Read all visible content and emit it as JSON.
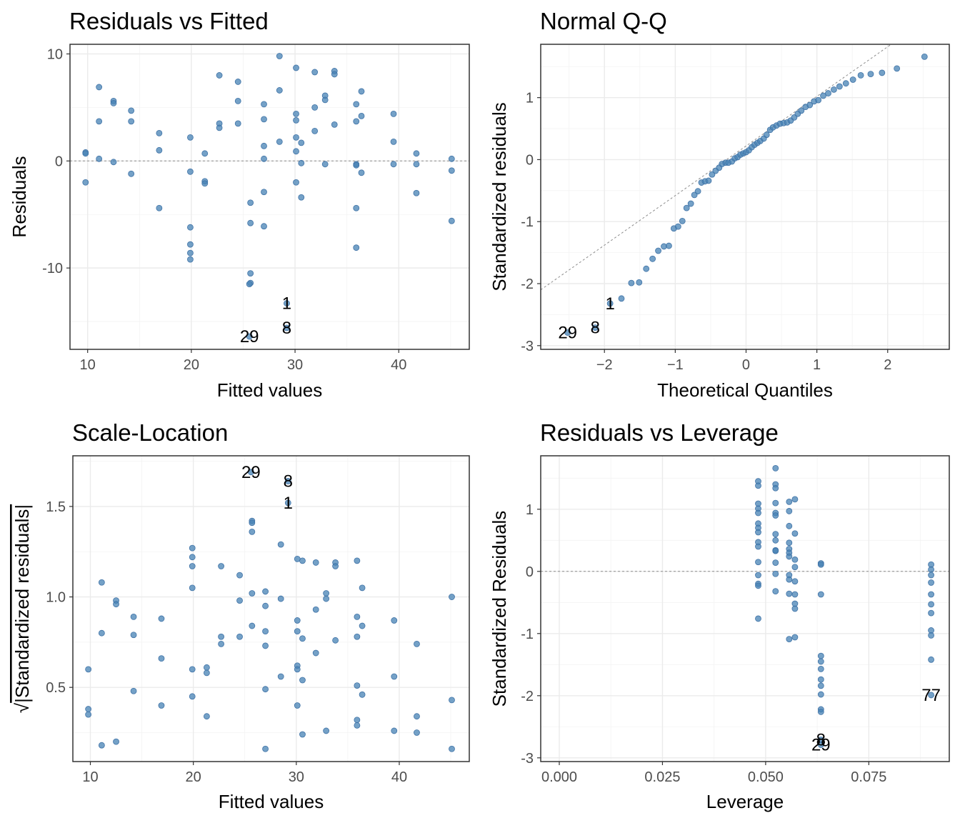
{
  "point_color": "#4682b4",
  "chart_data": [
    {
      "id": "rvf",
      "type": "scatter",
      "title": "Residuals vs Fitted",
      "xlabel": "Fitted values",
      "ylabel": "Residuals",
      "xlim": [
        8.3,
        46.8
      ],
      "ylim": [
        -17.6,
        10.9
      ],
      "xticks": [
        10,
        20,
        30,
        40
      ],
      "xtick_labels": [
        "10",
        "20",
        "30",
        "40"
      ],
      "yticks": [
        -10,
        0,
        10
      ],
      "ytick_labels": [
        "-10",
        "0",
        "10"
      ],
      "hline": 0,
      "grid": true,
      "points": [
        [
          9.8,
          0.8
        ],
        [
          9.8,
          0.7
        ],
        [
          9.8,
          -2.0
        ],
        [
          11.1,
          6.9
        ],
        [
          11.1,
          3.7
        ],
        [
          11.1,
          0.2
        ],
        [
          12.5,
          5.6
        ],
        [
          12.5,
          5.4
        ],
        [
          12.5,
          -0.1
        ],
        [
          14.2,
          4.7
        ],
        [
          14.2,
          3.7
        ],
        [
          14.2,
          -1.2
        ],
        [
          16.9,
          2.6
        ],
        [
          16.9,
          1.0
        ],
        [
          16.9,
          -4.4
        ],
        [
          19.9,
          2.2
        ],
        [
          19.9,
          -1.0
        ],
        [
          19.9,
          -6.2
        ],
        [
          19.9,
          -7.8
        ],
        [
          19.9,
          -8.6
        ],
        [
          19.9,
          -9.2
        ],
        [
          21.3,
          0.7
        ],
        [
          21.3,
          -1.9
        ],
        [
          21.3,
          -2.1
        ],
        [
          22.7,
          8.0
        ],
        [
          22.7,
          3.5
        ],
        [
          22.7,
          3.1
        ],
        [
          24.5,
          7.4
        ],
        [
          24.5,
          5.6
        ],
        [
          24.5,
          3.5
        ],
        [
          25.7,
          -3.9
        ],
        [
          25.7,
          -5.8
        ],
        [
          25.7,
          -10.5
        ],
        [
          25.7,
          -11.4
        ],
        [
          25.6,
          -11.5
        ],
        [
          27.0,
          5.3
        ],
        [
          27.0,
          3.9
        ],
        [
          27.0,
          1.4
        ],
        [
          27.0,
          0.2
        ],
        [
          27.0,
          -2.9
        ],
        [
          27.0,
          -6.1
        ],
        [
          28.5,
          9.8
        ],
        [
          28.5,
          6.6
        ],
        [
          28.5,
          1.8
        ],
        [
          30.1,
          8.7
        ],
        [
          30.1,
          4.4
        ],
        [
          30.1,
          3.8
        ],
        [
          30.1,
          2.2
        ],
        [
          30.1,
          0.9
        ],
        [
          30.1,
          -2.0
        ],
        [
          30.6,
          1.7
        ],
        [
          30.6,
          -0.2
        ],
        [
          30.6,
          -3.4
        ],
        [
          31.9,
          8.3
        ],
        [
          31.9,
          5.0
        ],
        [
          31.9,
          2.8
        ],
        [
          32.9,
          6.1
        ],
        [
          32.9,
          5.7
        ],
        [
          32.9,
          -0.3
        ],
        [
          33.8,
          8.4
        ],
        [
          33.8,
          8.1
        ],
        [
          33.8,
          3.4
        ],
        [
          35.9,
          5.3
        ],
        [
          35.9,
          3.7
        ],
        [
          35.9,
          -0.3
        ],
        [
          35.9,
          -0.4
        ],
        [
          35.9,
          -4.4
        ],
        [
          35.9,
          -8.1
        ],
        [
          36.4,
          6.5
        ],
        [
          36.4,
          4.2
        ],
        [
          36.4,
          -1.1
        ],
        [
          39.5,
          4.4
        ],
        [
          39.5,
          1.8
        ],
        [
          39.5,
          -0.3
        ],
        [
          41.7,
          0.7
        ],
        [
          41.7,
          -0.3
        ],
        [
          41.7,
          -3.0
        ],
        [
          45.1,
          0.2
        ],
        [
          45.1,
          -0.9
        ],
        [
          45.1,
          -5.6
        ],
        [
          29.2,
          -13.3
        ],
        [
          29.2,
          -15.6
        ],
        [
          25.6,
          -16.4
        ]
      ],
      "labels": [
        {
          "text": "1",
          "x": 29.2,
          "y": -13.3
        },
        {
          "text": "8",
          "x": 29.2,
          "y": -15.6
        },
        {
          "text": "29",
          "x": 25.6,
          "y": -16.4
        }
      ]
    },
    {
      "id": "qq",
      "type": "scatter",
      "title": "Normal Q-Q",
      "xlabel": "Theoretical Quantiles",
      "ylabel": "Standardized residuals",
      "xlim": [
        -2.9,
        2.87
      ],
      "ylim": [
        -3.06,
        1.86
      ],
      "xticks": [
        -2,
        -1,
        0,
        1,
        2
      ],
      "xtick_labels": [
        "−2",
        "−1",
        "0",
        "1",
        "2"
      ],
      "yticks": [
        -3,
        -2,
        -1,
        0,
        1
      ],
      "ytick_labels": [
        "-3",
        "-2",
        "-1",
        "0",
        "1"
      ],
      "refline": {
        "slope": 0.8,
        "intercept": 0.22
      },
      "grid": true,
      "points": [
        [
          -2.52,
          -2.79
        ],
        [
          -2.13,
          -2.71
        ],
        [
          -1.92,
          -2.32
        ],
        [
          -1.76,
          -2.24
        ],
        [
          -1.62,
          -1.99
        ],
        [
          -1.51,
          -1.98
        ],
        [
          -1.41,
          -1.76
        ],
        [
          -1.32,
          -1.6
        ],
        [
          -1.24,
          -1.47
        ],
        [
          -1.16,
          -1.4
        ],
        [
          -1.09,
          -1.39
        ],
        [
          -1.02,
          -1.11
        ],
        [
          -0.96,
          -1.08
        ],
        [
          -0.9,
          -0.99
        ],
        [
          -0.84,
          -0.78
        ],
        [
          -0.78,
          -0.71
        ],
        [
          -0.73,
          -0.57
        ],
        [
          -0.68,
          -0.51
        ],
        [
          -0.63,
          -0.37
        ],
        [
          -0.58,
          -0.35
        ],
        [
          -0.53,
          -0.34
        ],
        [
          -0.48,
          -0.24
        ],
        [
          -0.43,
          -0.18
        ],
        [
          -0.38,
          -0.13
        ],
        [
          -0.34,
          -0.07
        ],
        [
          -0.29,
          -0.05
        ],
        [
          -0.25,
          -0.05
        ],
        [
          -0.2,
          -0.03
        ],
        [
          -0.16,
          0.02
        ],
        [
          -0.12,
          0.04
        ],
        [
          -0.08,
          0.08
        ],
        [
          -0.04,
          0.1
        ],
        [
          0.0,
          0.12
        ],
        [
          0.04,
          0.15
        ],
        [
          0.08,
          0.2
        ],
        [
          0.12,
          0.24
        ],
        [
          0.16,
          0.27
        ],
        [
          0.2,
          0.3
        ],
        [
          0.25,
          0.34
        ],
        [
          0.29,
          0.4
        ],
        [
          0.34,
          0.48
        ],
        [
          0.38,
          0.52
        ],
        [
          0.43,
          0.55
        ],
        [
          0.48,
          0.58
        ],
        [
          0.53,
          0.59
        ],
        [
          0.58,
          0.6
        ],
        [
          0.63,
          0.63
        ],
        [
          0.68,
          0.68
        ],
        [
          0.73,
          0.74
        ],
        [
          0.78,
          0.79
        ],
        [
          0.84,
          0.85
        ],
        [
          0.9,
          0.88
        ],
        [
          0.96,
          0.94
        ],
        [
          1.02,
          0.96
        ],
        [
          1.09,
          1.03
        ],
        [
          1.16,
          1.07
        ],
        [
          1.24,
          1.13
        ],
        [
          1.32,
          1.18
        ],
        [
          1.41,
          1.23
        ],
        [
          1.51,
          1.29
        ],
        [
          1.62,
          1.36
        ],
        [
          1.76,
          1.38
        ],
        [
          1.92,
          1.4
        ],
        [
          2.13,
          1.47
        ],
        [
          2.52,
          1.66
        ]
      ],
      "labels": [
        {
          "text": "1",
          "x": -1.92,
          "y": -2.32
        },
        {
          "text": "8",
          "x": -2.13,
          "y": -2.71
        },
        {
          "text": "29",
          "x": -2.52,
          "y": -2.79
        }
      ]
    },
    {
      "id": "sl",
      "type": "scatter",
      "title": "Scale-Location",
      "xlabel": "Fitted values",
      "ylabel": "√|Standardized residuals|",
      "ylabel_sqrt": "√",
      "ylabel_text": "|Standardized residuals|",
      "xlim": [
        8.3,
        46.8
      ],
      "ylim": [
        0.09,
        1.78
      ],
      "xticks": [
        10,
        20,
        30,
        40
      ],
      "xtick_labels": [
        "10",
        "20",
        "30",
        "40"
      ],
      "yticks": [
        0.5,
        1.0,
        1.5
      ],
      "ytick_labels": [
        "0.5",
        "1.0",
        "1.5"
      ],
      "grid": true,
      "points": [
        [
          9.8,
          0.6
        ],
        [
          9.8,
          0.38
        ],
        [
          9.8,
          0.35
        ],
        [
          11.1,
          1.08
        ],
        [
          11.1,
          0.8
        ],
        [
          11.1,
          0.18
        ],
        [
          12.5,
          0.98
        ],
        [
          12.5,
          0.96
        ],
        [
          12.5,
          0.2
        ],
        [
          14.2,
          0.89
        ],
        [
          14.2,
          0.79
        ],
        [
          14.2,
          0.48
        ],
        [
          16.9,
          0.88
        ],
        [
          16.9,
          0.66
        ],
        [
          16.9,
          0.4
        ],
        [
          19.9,
          1.27
        ],
        [
          19.9,
          1.22
        ],
        [
          19.9,
          1.17
        ],
        [
          19.9,
          1.05
        ],
        [
          19.9,
          0.6
        ],
        [
          19.9,
          0.45
        ],
        [
          21.3,
          0.61
        ],
        [
          21.3,
          0.58
        ],
        [
          21.3,
          0.34
        ],
        [
          22.7,
          1.17
        ],
        [
          22.7,
          0.78
        ],
        [
          22.7,
          0.74
        ],
        [
          24.5,
          1.12
        ],
        [
          24.5,
          0.98
        ],
        [
          24.5,
          0.78
        ],
        [
          25.7,
          1.42
        ],
        [
          25.7,
          1.41
        ],
        [
          25.7,
          1.36
        ],
        [
          25.7,
          1.02
        ],
        [
          25.7,
          0.84
        ],
        [
          27.0,
          1.03
        ],
        [
          27.0,
          0.95
        ],
        [
          27.0,
          0.81
        ],
        [
          27.0,
          0.73
        ],
        [
          27.0,
          0.49
        ],
        [
          27.0,
          0.16
        ],
        [
          28.5,
          1.29
        ],
        [
          28.5,
          0.99
        ],
        [
          28.5,
          0.56
        ],
        [
          30.1,
          1.21
        ],
        [
          30.1,
          0.87
        ],
        [
          30.1,
          0.81
        ],
        [
          30.1,
          0.62
        ],
        [
          30.1,
          0.6
        ],
        [
          30.1,
          0.4
        ],
        [
          30.6,
          1.2
        ],
        [
          30.6,
          0.77
        ],
        [
          30.6,
          0.54
        ],
        [
          30.6,
          0.24
        ],
        [
          31.9,
          1.19
        ],
        [
          31.9,
          0.93
        ],
        [
          31.9,
          0.69
        ],
        [
          32.9,
          1.02
        ],
        [
          32.9,
          0.99
        ],
        [
          32.9,
          0.26
        ],
        [
          33.8,
          1.19
        ],
        [
          33.8,
          1.17
        ],
        [
          33.8,
          0.76
        ],
        [
          35.9,
          1.2
        ],
        [
          35.9,
          0.89
        ],
        [
          35.9,
          0.78
        ],
        [
          35.9,
          0.51
        ],
        [
          35.9,
          0.32
        ],
        [
          35.9,
          0.29
        ],
        [
          36.4,
          1.05
        ],
        [
          36.4,
          0.84
        ],
        [
          36.4,
          0.46
        ],
        [
          39.5,
          0.87
        ],
        [
          39.5,
          0.56
        ],
        [
          39.5,
          0.26
        ],
        [
          41.7,
          0.74
        ],
        [
          41.7,
          0.34
        ],
        [
          41.7,
          0.25
        ],
        [
          45.1,
          1.0
        ],
        [
          45.1,
          0.43
        ],
        [
          45.1,
          0.16
        ],
        [
          29.2,
          1.52
        ],
        [
          29.2,
          1.64
        ],
        [
          25.6,
          1.69
        ]
      ],
      "labels": [
        {
          "text": "29",
          "x": 25.6,
          "y": 1.69
        },
        {
          "text": "8",
          "x": 29.2,
          "y": 1.64
        },
        {
          "text": "1",
          "x": 29.2,
          "y": 1.52
        }
      ]
    },
    {
      "id": "rvl",
      "type": "scatter",
      "title": "Residuals vs Leverage",
      "xlabel": "Leverage",
      "ylabel": "Standardized Residuals",
      "xlim": [
        -0.0045,
        0.0945
      ],
      "ylim": [
        -3.06,
        1.86
      ],
      "xticks": [
        0.0,
        0.025,
        0.05,
        0.075
      ],
      "xtick_labels": [
        "0.000",
        "0.025",
        "0.050",
        "0.075"
      ],
      "yticks": [
        -3,
        -2,
        -1,
        0,
        1
      ],
      "ytick_labels": [
        "-3",
        "-2",
        "-1",
        "0",
        "1"
      ],
      "hline": 0,
      "grid": true,
      "points": [
        [
          0.0482,
          1.45
        ],
        [
          0.0482,
          1.38
        ],
        [
          0.0482,
          1.09
        ],
        [
          0.0482,
          1.01
        ],
        [
          0.0482,
          0.94
        ],
        [
          0.0482,
          0.77
        ],
        [
          0.0482,
          0.7
        ],
        [
          0.0482,
          0.63
        ],
        [
          0.0482,
          0.47
        ],
        [
          0.0482,
          0.4
        ],
        [
          0.0482,
          0.15
        ],
        [
          0.0482,
          -0.06
        ],
        [
          0.0482,
          -0.2
        ],
        [
          0.0482,
          -0.23
        ],
        [
          0.0482,
          -0.76
        ],
        [
          0.0524,
          1.66
        ],
        [
          0.0524,
          1.4
        ],
        [
          0.0524,
          1.34
        ],
        [
          0.0524,
          1.1
        ],
        [
          0.0524,
          0.94
        ],
        [
          0.0524,
          0.9
        ],
        [
          0.0524,
          0.6
        ],
        [
          0.0524,
          0.5
        ],
        [
          0.0524,
          0.34
        ],
        [
          0.0524,
          0.33
        ],
        [
          0.0524,
          0.14
        ],
        [
          0.0524,
          -0.04
        ],
        [
          0.0524,
          -0.32
        ],
        [
          0.0557,
          1.12
        ],
        [
          0.0557,
          0.97
        ],
        [
          0.0557,
          0.73
        ],
        [
          0.0557,
          0.46
        ],
        [
          0.0557,
          0.36
        ],
        [
          0.0557,
          0.3
        ],
        [
          0.0557,
          0.24
        ],
        [
          0.0557,
          -0.06
        ],
        [
          0.0557,
          -0.13
        ],
        [
          0.0557,
          -0.36
        ],
        [
          0.0557,
          -1.09
        ],
        [
          0.0571,
          1.16
        ],
        [
          0.0571,
          0.61
        ],
        [
          0.0571,
          0.19
        ],
        [
          0.0571,
          0.07
        ],
        [
          0.0571,
          -0.16
        ],
        [
          0.0571,
          -0.37
        ],
        [
          0.0571,
          -0.52
        ],
        [
          0.0571,
          -0.6
        ],
        [
          0.0571,
          -1.06
        ],
        [
          0.0634,
          0.13
        ],
        [
          0.0634,
          0.11
        ],
        [
          0.0634,
          -0.37
        ],
        [
          0.0634,
          -1.36
        ],
        [
          0.0634,
          -1.45
        ],
        [
          0.0634,
          -1.57
        ],
        [
          0.0634,
          -1.74
        ],
        [
          0.0634,
          -1.84
        ],
        [
          0.0634,
          -1.98
        ],
        [
          0.0634,
          -2.22
        ],
        [
          0.0634,
          -2.26
        ],
        [
          0.0901,
          0.11
        ],
        [
          0.0901,
          0.03
        ],
        [
          0.0901,
          -0.06
        ],
        [
          0.0901,
          -0.18
        ],
        [
          0.0901,
          -0.37
        ],
        [
          0.0901,
          -0.53
        ],
        [
          0.0901,
          -0.67
        ],
        [
          0.0901,
          -0.95
        ],
        [
          0.0901,
          -1.03
        ],
        [
          0.0901,
          -1.42
        ],
        [
          0.0901,
          -1.99
        ],
        [
          0.0634,
          -2.71
        ],
        [
          0.0634,
          -2.79
        ]
      ],
      "labels": [
        {
          "text": "8",
          "x": 0.0634,
          "y": -2.71
        },
        {
          "text": "29",
          "x": 0.0634,
          "y": -2.79
        },
        {
          "text": "77",
          "x": 0.0901,
          "y": -1.99
        }
      ]
    }
  ]
}
